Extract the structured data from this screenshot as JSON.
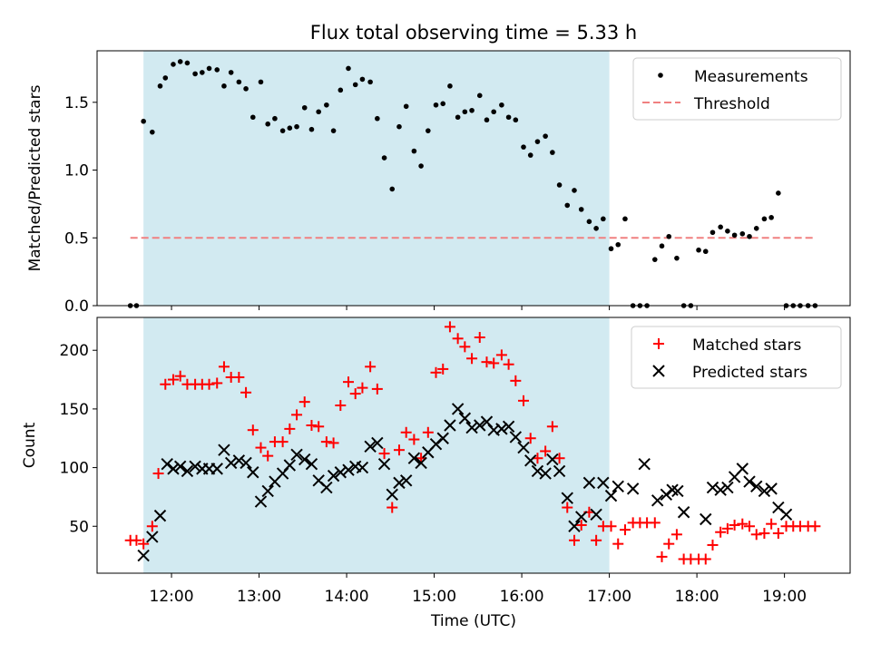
{
  "chart_data": {
    "type": "scatter",
    "title": "Flux total observing time = 5.33 h",
    "xlabel": "Time (UTC)",
    "x_tick_labels": [
      "12:00",
      "13:00",
      "14:00",
      "15:00",
      "16:00",
      "17:00",
      "18:00",
      "19:00"
    ],
    "x_tick_values": [
      12,
      13,
      14,
      15,
      16,
      17,
      18,
      19
    ],
    "xlim": [
      11.15,
      19.75
    ],
    "shaded_interval": {
      "start": 11.68,
      "end": 17.0,
      "color": "#add8e6"
    },
    "panels": [
      {
        "ylabel": "Matched/Predicted stars",
        "ylim": [
          0,
          1.88
        ],
        "y_tick_values": [
          0.0,
          0.5,
          1.0,
          1.5
        ],
        "y_tick_labels": [
          "0.0",
          "0.5",
          "1.0",
          "1.5"
        ],
        "legend_position": "top-right",
        "series": [
          {
            "name": "Measurements",
            "marker": "dot",
            "color": "#000000",
            "x": [
              11.53,
              11.6,
              11.68,
              11.78,
              11.87,
              11.93,
              12.02,
              12.1,
              12.18,
              12.27,
              12.35,
              12.43,
              12.52,
              12.6,
              12.68,
              12.77,
              12.85,
              12.93,
              13.02,
              13.1,
              13.18,
              13.27,
              13.35,
              13.43,
              13.52,
              13.6,
              13.68,
              13.77,
              13.85,
              13.93,
              14.02,
              14.1,
              14.18,
              14.27,
              14.35,
              14.43,
              14.52,
              14.6,
              14.68,
              14.77,
              14.85,
              14.93,
              15.02,
              15.1,
              15.18,
              15.27,
              15.35,
              15.43,
              15.52,
              15.6,
              15.68,
              15.77,
              15.85,
              15.93,
              16.02,
              16.1,
              16.18,
              16.27,
              16.35,
              16.43,
              16.52,
              16.6,
              16.68,
              16.77,
              16.85,
              16.93,
              17.02,
              17.1,
              17.18,
              17.27,
              17.35,
              17.43,
              17.52,
              17.6,
              17.68,
              17.77,
              17.85,
              17.93,
              18.02,
              18.1,
              18.18,
              18.27,
              18.35,
              18.43,
              18.52,
              18.6,
              18.68,
              18.77,
              18.85,
              18.93,
              19.02,
              19.1,
              19.18,
              19.27,
              19.35
            ],
            "y": [
              0,
              0,
              1.36,
              1.28,
              1.62,
              1.68,
              1.78,
              1.8,
              1.79,
              1.71,
              1.72,
              1.75,
              1.74,
              1.62,
              1.72,
              1.65,
              1.6,
              1.39,
              1.65,
              1.34,
              1.38,
              1.29,
              1.31,
              1.32,
              1.46,
              1.3,
              1.43,
              1.48,
              1.29,
              1.59,
              1.75,
              1.63,
              1.67,
              1.65,
              1.38,
              1.09,
              0.86,
              1.32,
              1.47,
              1.14,
              1.03,
              1.29,
              1.48,
              1.49,
              1.62,
              1.39,
              1.43,
              1.44,
              1.55,
              1.37,
              1.43,
              1.48,
              1.39,
              1.37,
              1.17,
              1.11,
              1.21,
              1.25,
              1.13,
              0.89,
              0.74,
              0.85,
              0.71,
              0.62,
              0.57,
              0.64,
              0.42,
              0.45,
              0.64,
              0,
              0,
              0,
              0.34,
              0.44,
              0.51,
              0.35,
              0,
              0,
              0.41,
              0.4,
              0.54,
              0.58,
              0.55,
              0.52,
              0.53,
              0.51,
              0.57,
              0.64,
              0.65,
              0.83,
              0,
              0,
              0,
              0,
              0
            ]
          },
          {
            "name": "Threshold",
            "marker": "dashed-line",
            "color": "#f08080",
            "x": [
              11.53,
              19.35
            ],
            "y": [
              0.5,
              0.5
            ]
          }
        ]
      },
      {
        "ylabel": "Count",
        "ylim": [
          10,
          228
        ],
        "y_tick_values": [
          50,
          100,
          150,
          200
        ],
        "y_tick_labels": [
          "50",
          "100",
          "150",
          "200"
        ],
        "legend_position": "top-right",
        "series": [
          {
            "name": "Matched stars",
            "marker": "plus",
            "color": "#ff0000",
            "x": [
              11.53,
              11.6,
              11.68,
              11.78,
              11.85,
              11.93,
              12.02,
              12.1,
              12.18,
              12.27,
              12.35,
              12.43,
              12.52,
              12.6,
              12.68,
              12.77,
              12.85,
              12.93,
              13.02,
              13.1,
              13.18,
              13.27,
              13.35,
              13.43,
              13.52,
              13.6,
              13.68,
              13.77,
              13.85,
              13.93,
              14.02,
              14.1,
              14.18,
              14.27,
              14.35,
              14.43,
              14.52,
              14.6,
              14.68,
              14.77,
              14.85,
              14.93,
              15.02,
              15.1,
              15.18,
              15.27,
              15.35,
              15.43,
              15.52,
              15.6,
              15.68,
              15.77,
              15.85,
              15.93,
              16.02,
              16.1,
              16.18,
              16.27,
              16.35,
              16.43,
              16.52,
              16.6,
              16.68,
              16.77,
              16.85,
              16.93,
              17.02,
              17.1,
              17.18,
              17.27,
              17.35,
              17.43,
              17.52,
              17.6,
              17.68,
              17.77,
              17.85,
              17.93,
              18.02,
              18.1,
              18.18,
              18.27,
              18.35,
              18.43,
              18.52,
              18.6,
              18.68,
              18.77,
              18.85,
              18.93,
              19.02,
              19.1,
              19.18,
              19.27,
              19.35
            ],
            "y": [
              38,
              38,
              35,
              50,
              95,
              171,
              175,
              178,
              171,
              171,
              171,
              171,
              172,
              186,
              177,
              177,
              164,
              132,
              117,
              110,
              122,
              122,
              133,
              145,
              156,
              136,
              135,
              122,
              121,
              153,
              173,
              163,
              168,
              186,
              167,
              112,
              66,
              115,
              130,
              124,
              108,
              130,
              181,
              184,
              220,
              210,
              203,
              193,
              211,
              190,
              189,
              196,
              188,
              174,
              157,
              125,
              108,
              114,
              135,
              108,
              66,
              38,
              51,
              62,
              38,
              50,
              50,
              35,
              47,
              53,
              53,
              53,
              53,
              24,
              35,
              43,
              22,
              22,
              22,
              22,
              34,
              45,
              48,
              51,
              52,
              50,
              43,
              44,
              52,
              44,
              50,
              50,
              50,
              50,
              50
            ]
          },
          {
            "name": "Predicted stars",
            "marker": "x",
            "color": "#000000",
            "x": [
              11.68,
              11.78,
              11.87,
              11.95,
              12.02,
              12.1,
              12.18,
              12.27,
              12.35,
              12.43,
              12.52,
              12.6,
              12.68,
              12.77,
              12.85,
              12.93,
              13.02,
              13.1,
              13.18,
              13.27,
              13.35,
              13.43,
              13.52,
              13.6,
              13.68,
              13.77,
              13.85,
              13.93,
              14.02,
              14.1,
              14.18,
              14.27,
              14.35,
              14.43,
              14.52,
              14.6,
              14.68,
              14.77,
              14.85,
              14.93,
              15.02,
              15.1,
              15.18,
              15.27,
              15.35,
              15.43,
              15.52,
              15.6,
              15.68,
              15.77,
              15.85,
              15.93,
              16.02,
              16.1,
              16.18,
              16.27,
              16.35,
              16.43,
              16.52,
              16.6,
              16.68,
              16.77,
              16.85,
              16.93,
              17.02,
              17.1,
              17.27,
              17.4,
              17.55,
              17.65,
              17.72,
              17.78,
              17.85,
              18.1,
              18.18,
              18.27,
              18.35,
              18.43,
              18.52,
              18.6,
              18.68,
              18.77,
              18.85,
              18.93,
              19.02
            ],
            "y": [
              25,
              41,
              59,
              103,
              99,
              101,
              97,
              101,
              99,
              99,
              99,
              115,
              104,
              106,
              104,
              96,
              71,
              80,
              88,
              95,
              102,
              111,
              107,
              103,
              89,
              83,
              93,
              96,
              98,
              101,
              100,
              118,
              121,
              103,
              77,
              87,
              89,
              108,
              104,
              113,
              120,
              125,
              136,
              150,
              142,
              134,
              136,
              139,
              132,
              133,
              135,
              126,
              117,
              106,
              97,
              95,
              107,
              97,
              74,
              50,
              58,
              87,
              60,
              87,
              76,
              84,
              82,
              103,
              72,
              77,
              81,
              80,
              62,
              56,
              83,
              81,
              83,
              92,
              99,
              88,
              84,
              80,
              82,
              66,
              60
            ]
          }
        ]
      }
    ]
  }
}
